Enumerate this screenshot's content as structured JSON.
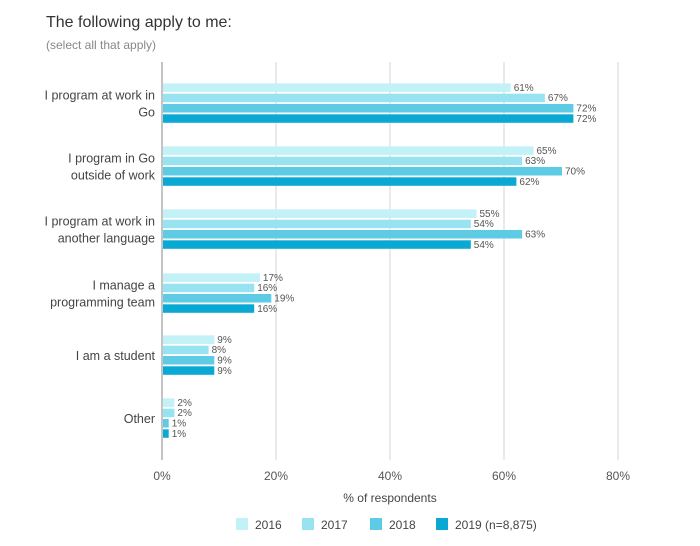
{
  "chart_data": {
    "type": "bar",
    "orientation": "horizontal",
    "title": "The following apply to me:",
    "subtitle": "(select all that apply)",
    "xlabel": "% of respondents",
    "ylabel": "",
    "xlim": [
      0,
      80
    ],
    "x_ticks": [
      "0%",
      "20%",
      "40%",
      "60%",
      "80%"
    ],
    "grid": "vertical",
    "legend_position": "bottom",
    "categories": [
      [
        "I program at work in",
        "Go"
      ],
      [
        "I program in Go",
        "outside of work"
      ],
      [
        "I program at work in",
        "another language"
      ],
      [
        "I manage a",
        "programming team"
      ],
      [
        "I am a student"
      ],
      [
        "Other"
      ]
    ],
    "series": [
      {
        "name": "2016",
        "color": "#c2f1f8",
        "values": [
          61,
          65,
          55,
          17,
          9,
          2
        ]
      },
      {
        "name": "2017",
        "color": "#97e3f1",
        "values": [
          67,
          63,
          54,
          16,
          8,
          2
        ]
      },
      {
        "name": "2018",
        "color": "#5ecbe4",
        "values": [
          72,
          70,
          63,
          19,
          9,
          1
        ]
      },
      {
        "name": "2019 (n=8,875)",
        "color": "#0aa9d3",
        "values": [
          72,
          62,
          54,
          16,
          9,
          1
        ]
      }
    ],
    "value_labels": [
      [
        "61%",
        "67%",
        "72%",
        "72%"
      ],
      [
        "65%",
        "63%",
        "70%",
        "62%"
      ],
      [
        "55%",
        "54%",
        "63%",
        "54%"
      ],
      [
        "17%",
        "16%",
        "19%",
        "16%"
      ],
      [
        "9%",
        "8%",
        "9%",
        "9%"
      ],
      [
        "2%",
        "2%",
        "1%",
        "1%"
      ]
    ]
  }
}
